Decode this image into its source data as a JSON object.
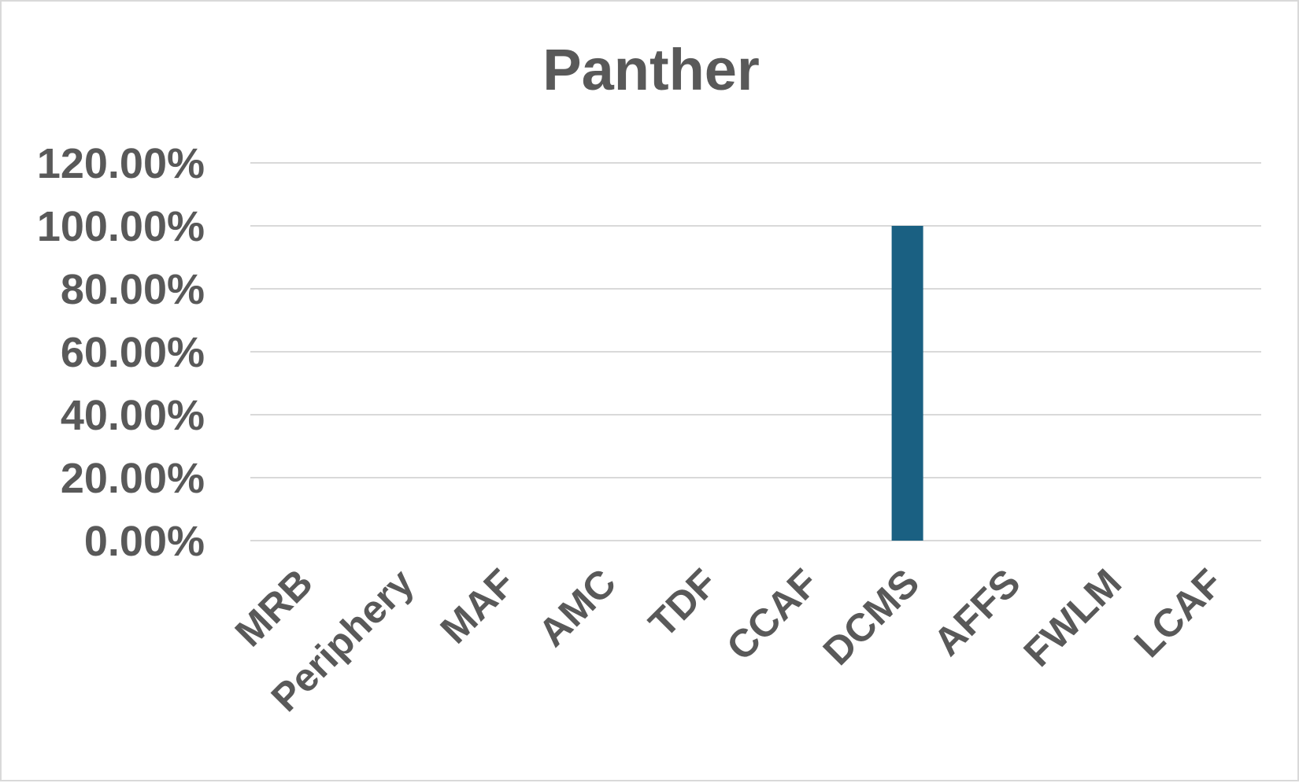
{
  "chart_data": {
    "type": "bar",
    "title": "Panther",
    "xlabel": "",
    "ylabel": "",
    "categories": [
      "MRB",
      "Periphery",
      "MAF",
      "AMC",
      "TDF",
      "CCAF",
      "DCMS",
      "AFFS",
      "FWLM",
      "LCAF"
    ],
    "values": [
      0,
      0,
      0,
      0,
      0,
      0,
      1.0,
      0,
      0,
      0
    ],
    "ylim": [
      0,
      1.2
    ],
    "yticks": [
      0,
      0.2,
      0.4,
      0.6,
      0.8,
      1.0,
      1.2
    ],
    "ytick_labels": [
      "0.00%",
      "20.00%",
      "40.00%",
      "60.00%",
      "80.00%",
      "100.00%",
      "120.00%"
    ],
    "grid": true,
    "legend": "none",
    "colors": {
      "bar": "#1a6082",
      "gridline": "#d9d9d9",
      "text": "#595959",
      "border": "#d9d9d9"
    }
  }
}
